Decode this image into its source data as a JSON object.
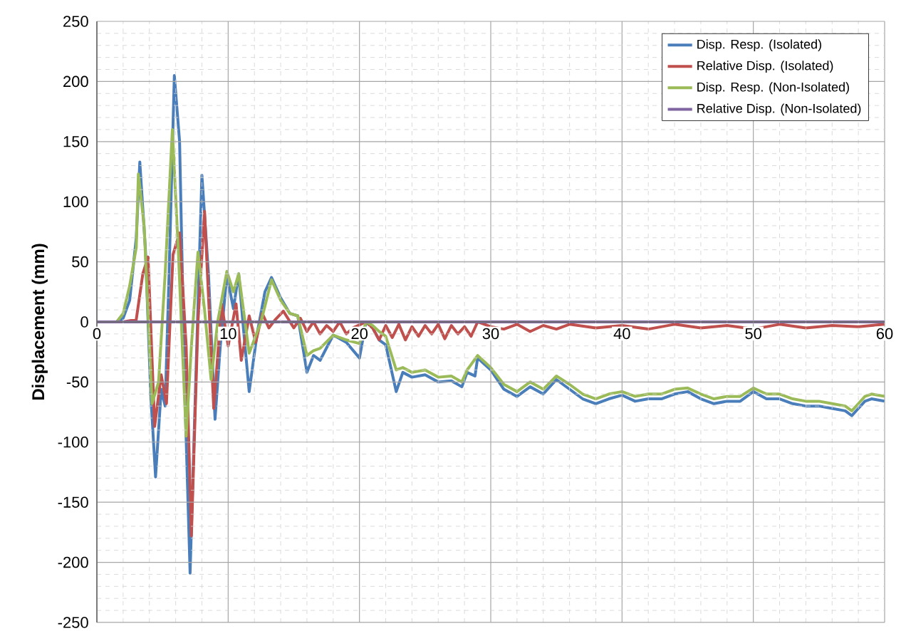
{
  "chart_data": {
    "type": "line",
    "ylabel": "Displacement (mm)",
    "xlim": [
      0,
      60
    ],
    "ylim": [
      -250,
      250
    ],
    "xticks": [
      0,
      10,
      20,
      30,
      40,
      50,
      60
    ],
    "yticks": [
      -250,
      -200,
      -150,
      -100,
      -50,
      0,
      50,
      100,
      150,
      200,
      250
    ],
    "grid": true,
    "legend": "top right",
    "line_style": "solid",
    "marker": "none",
    "series": [
      {
        "name": "Disp. Resp. (Isolated)",
        "color": "#4a7ebb",
        "x": [
          0,
          1.5,
          2,
          2.5,
          3,
          3.27,
          3.7,
          4.1,
          4.47,
          4.9,
          5.2,
          5.5,
          5.9,
          6.3,
          6.7,
          7.1,
          7.5,
          8.0,
          8.5,
          9.0,
          9.4,
          9.9,
          10.4,
          10.8,
          11.2,
          11.6,
          12.2,
          12.8,
          13.3,
          14,
          14.7,
          15.3,
          16,
          16.5,
          17,
          18,
          19,
          20,
          20.5,
          21,
          21.5,
          22,
          22.8,
          23.3,
          24,
          25,
          26,
          27,
          27.8,
          28.2,
          28.8,
          29,
          30,
          31,
          32,
          33,
          34,
          35,
          36,
          37,
          38,
          39,
          40,
          41,
          42,
          43,
          44,
          45,
          46,
          47,
          48,
          49,
          50,
          51,
          52,
          53,
          54,
          55,
          56,
          57,
          57.5,
          58,
          58.5,
          59,
          60
        ],
        "values": [
          0,
          0,
          3,
          18,
          70,
          133,
          60,
          -60,
          -129,
          -56,
          -70,
          40,
          205,
          150,
          -60,
          -209,
          -60,
          122,
          40,
          -81,
          -20,
          39,
          11,
          40,
          -10,
          -58,
          -10,
          25,
          37,
          20,
          7,
          5,
          -42,
          -28,
          -32,
          -11,
          -17,
          -30,
          0,
          -5,
          -15,
          -19,
          -58,
          -42,
          -46,
          -44,
          -50,
          -49,
          -54,
          -42,
          -45,
          -30,
          -40,
          -56,
          -62,
          -54,
          -60,
          -48,
          -56,
          -64,
          -68,
          -64,
          -61,
          -66,
          -64,
          -64,
          -60,
          -58,
          -64,
          -68,
          -66,
          -66,
          -58,
          -64,
          -64,
          -68,
          -70,
          -70,
          -72,
          -74,
          -78,
          -72,
          -66,
          -64,
          -66
        ]
      },
      {
        "name": "Relative Disp. (Isolated)",
        "color": "#c0504d",
        "x": [
          0,
          2,
          3,
          3.5,
          3.9,
          4.4,
          4.9,
          5.3,
          5.8,
          6.3,
          6.8,
          7.2,
          7.7,
          8.2,
          8.9,
          9.5,
          10,
          10.6,
          11,
          11.6,
          12.1,
          12.6,
          13.1,
          13.6,
          14.2,
          15,
          15.5,
          16,
          16.5,
          17,
          17.5,
          18,
          18.5,
          19,
          19.5,
          20.5,
          21,
          21.5,
          22,
          22.5,
          23,
          23.5,
          24,
          24.5,
          25,
          25.5,
          26,
          26.5,
          27,
          27.5,
          28,
          28.5,
          29,
          30,
          31,
          32,
          33,
          34,
          35,
          36,
          38,
          40,
          42,
          44,
          46,
          48,
          50,
          52,
          54,
          56,
          58,
          60
        ],
        "values": [
          0,
          0,
          2,
          40,
          54,
          -87,
          -44,
          -68,
          56,
          74,
          -20,
          -178,
          0,
          92,
          -72,
          15,
          -20,
          15,
          -32,
          5,
          -17,
          7,
          -5,
          2,
          9,
          -5,
          3,
          -8,
          0,
          -10,
          -3,
          -8,
          0,
          -10,
          -5,
          0,
          -5,
          -15,
          -3,
          -13,
          -2,
          -15,
          -4,
          -12,
          -3,
          -10,
          -2,
          -14,
          -3,
          -10,
          -4,
          -12,
          0,
          -4,
          -6,
          -2,
          -8,
          -3,
          -6,
          -2,
          -5,
          -3,
          -6,
          -2,
          -5,
          -3,
          -6,
          -2,
          -5,
          -3,
          -4,
          -2
        ]
      },
      {
        "name": "Disp. Resp. (Non-Isolated)",
        "color": "#9bbb59",
        "x": [
          0,
          1.5,
          2,
          2.5,
          3,
          3.16,
          3.6,
          4.2,
          4.7,
          5.2,
          5.75,
          6.2,
          6.8,
          7.2,
          7.7,
          8.2,
          8.7,
          9.2,
          9.9,
          10.4,
          10.8,
          11.6,
          12.5,
          13.3,
          14,
          14.7,
          15.3,
          16,
          16.5,
          17,
          18,
          19,
          20,
          20.5,
          21,
          21.5,
          22,
          22.8,
          23.3,
          24,
          25,
          26,
          27,
          27.8,
          28.2,
          29,
          30,
          31,
          32,
          33,
          34,
          35,
          36,
          37,
          38,
          39,
          40,
          41,
          42,
          43,
          44,
          45,
          46,
          47,
          48,
          49,
          50,
          51,
          52,
          53,
          54,
          55,
          56,
          57,
          57.5,
          58,
          58.5,
          59,
          60
        ],
        "values": [
          0,
          0,
          7,
          30,
          62,
          123,
          80,
          -68,
          -50,
          40,
          160,
          60,
          -95,
          -20,
          58,
          10,
          -48,
          0,
          42,
          25,
          40,
          -26,
          0,
          35,
          18,
          7,
          5,
          -28,
          -24,
          -22,
          -11,
          -15,
          -18,
          0,
          -3,
          -8,
          -12,
          -40,
          -38,
          -42,
          -40,
          -46,
          -45,
          -50,
          -40,
          -28,
          -38,
          -52,
          -58,
          -50,
          -56,
          -45,
          -52,
          -60,
          -64,
          -60,
          -58,
          -62,
          -60,
          -60,
          -56,
          -55,
          -60,
          -64,
          -62,
          -62,
          -55,
          -60,
          -60,
          -64,
          -66,
          -66,
          -68,
          -70,
          -74,
          -68,
          -62,
          -60,
          -62
        ]
      },
      {
        "name": "Relative Disp. (Non-Isolated)",
        "color": "#8064a2",
        "x": [
          0,
          60
        ],
        "values": [
          0,
          0
        ]
      }
    ]
  }
}
